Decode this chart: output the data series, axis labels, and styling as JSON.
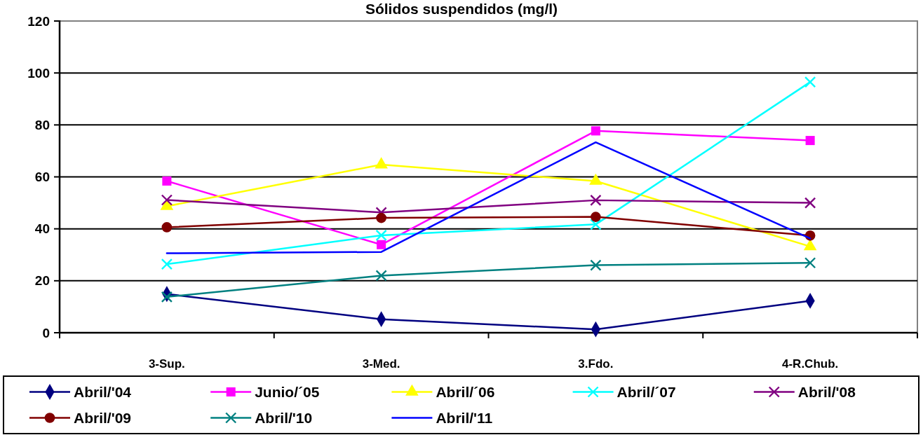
{
  "chart_data": {
    "type": "line",
    "title": "Sólidos suspendidos (mg/l)",
    "categories": [
      "3-Sup.",
      "3-Med.",
      "3.Fdo.",
      "4-R.Chub."
    ],
    "series": [
      {
        "name": "Abril/'04",
        "color": "#000080",
        "marker": "diamond",
        "values": [
          14.9,
          5.2,
          1.3,
          12.3
        ]
      },
      {
        "name": "Junio/´05",
        "color": "#ff00ff",
        "marker": "square",
        "values": [
          58.4,
          33.9,
          77.7,
          74.0
        ]
      },
      {
        "name": "Abril/´06",
        "color": "#ffff00",
        "marker": "triangle",
        "values": [
          48.7,
          64.7,
          58.4,
          33.2
        ]
      },
      {
        "name": "Abril/´07",
        "color": "#00ffff",
        "marker": "cross",
        "values": [
          26.4,
          37.5,
          41.7,
          96.5
        ]
      },
      {
        "name": "Abril/'08",
        "color": "#800080",
        "marker": "cross",
        "values": [
          51.1,
          46.3,
          51.0,
          50.0
        ]
      },
      {
        "name": "Abril/'09",
        "color": "#800000",
        "marker": "circle",
        "values": [
          40.6,
          44.2,
          44.6,
          37.4
        ]
      },
      {
        "name": "Abril/'10",
        "color": "#008080",
        "marker": "cross",
        "values": [
          13.8,
          22.0,
          26.0,
          26.9
        ]
      },
      {
        "name": "Abril/'11",
        "color": "#0000ff",
        "values": [
          30.6,
          31.1,
          73.3,
          36.3
        ]
      }
    ],
    "ylim": [
      0,
      120
    ],
    "yticks": [
      0,
      20,
      40,
      60,
      80,
      100,
      120
    ],
    "grid": "y",
    "legend": "bottom",
    "line_style": "solid"
  }
}
